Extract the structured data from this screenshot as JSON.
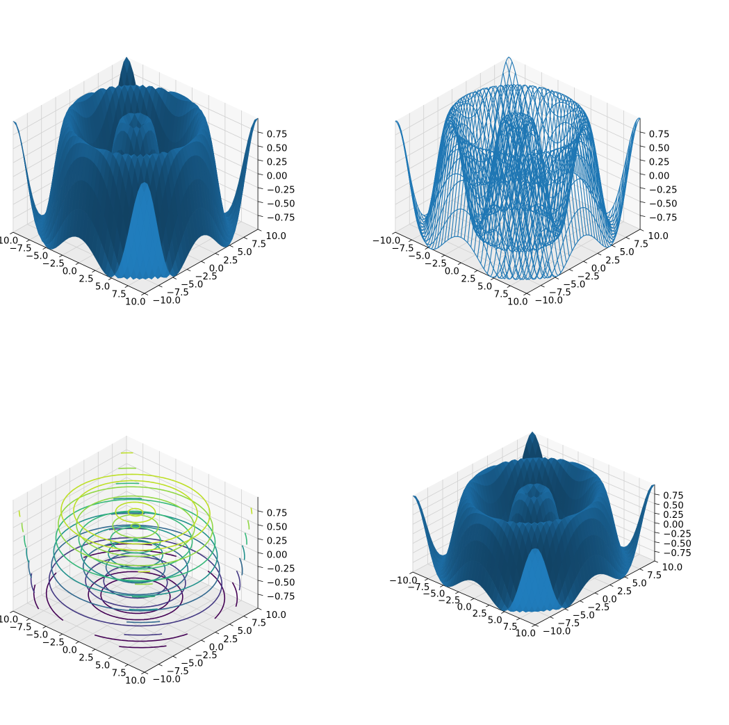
{
  "chart_data": [
    {
      "type": "surface",
      "render": "surface",
      "function": "sin(sqrt(x^2 + y^2))",
      "x_range": [
        -10,
        10
      ],
      "y_range": [
        -10,
        10
      ],
      "z_range": [
        -1,
        1
      ],
      "x_ticks": [
        "−10.0",
        "−7.5",
        "−5.0",
        "−2.5",
        "0.0",
        "2.5",
        "5.0",
        "7.5",
        "10.0"
      ],
      "y_ticks": [
        "−10.0",
        "−7.5",
        "−5.0",
        "−2.5",
        "0.0",
        "2.5",
        "5.0",
        "7.5",
        "10.0"
      ],
      "z_ticks": [
        "−0.75",
        "−0.50",
        "−0.25",
        "0.00",
        "0.25",
        "0.50",
        "0.75"
      ],
      "color": "#1f77b4",
      "grid": true,
      "view": {
        "elev": 30,
        "azim": -60
      }
    },
    {
      "type": "surface",
      "render": "wireframe",
      "function": "sin(sqrt(x^2 + y^2))",
      "x_range": [
        -10,
        10
      ],
      "y_range": [
        -10,
        10
      ],
      "z_range": [
        -1,
        1
      ],
      "x_ticks": [
        "−10.0",
        "−7.5",
        "−5.0",
        "−2.5",
        "0.0",
        "2.5",
        "5.0",
        "7.5",
        "10.0"
      ],
      "y_ticks": [
        "−10.0",
        "−7.5",
        "−5.0",
        "−2.5",
        "0.0",
        "2.5",
        "5.0",
        "7.5",
        "10.0"
      ],
      "z_ticks": [
        "−0.75",
        "−0.50",
        "−0.25",
        "0.00",
        "0.25",
        "0.50",
        "0.75"
      ],
      "color": "#1f77b4",
      "grid": true,
      "view": {
        "elev": 30,
        "azim": -60
      }
    },
    {
      "type": "contour3d",
      "render": "contour",
      "function": "sin(sqrt(x^2 + y^2))",
      "x_range": [
        -10,
        10
      ],
      "y_range": [
        -10,
        10
      ],
      "z_range": [
        -1,
        1
      ],
      "levels": [
        -0.75,
        -0.5,
        -0.25,
        0,
        0.25,
        0.5,
        0.75
      ],
      "level_colors": [
        "#440154",
        "#443983",
        "#31688e",
        "#21918c",
        "#35b779",
        "#90d743",
        "#bddf26"
      ],
      "x_ticks": [
        "−10.0",
        "−7.5",
        "−5.0",
        "−2.5",
        "0.0",
        "2.5",
        "5.0",
        "7.5",
        "10.0"
      ],
      "y_ticks": [
        "−10.0",
        "−7.5",
        "−5.0",
        "−2.5",
        "0.0",
        "2.5",
        "5.0",
        "7.5",
        "10.0"
      ],
      "z_ticks": [
        "−0.75",
        "−0.50",
        "−0.25",
        "0.00",
        "0.25",
        "0.50",
        "0.75"
      ],
      "grid": true,
      "view": {
        "elev": 30,
        "azim": -60
      }
    },
    {
      "type": "surface",
      "render": "surface",
      "function": "sin(sqrt(x^2 + y^2))",
      "x_range": [
        -10,
        10
      ],
      "y_range": [
        -10,
        10
      ],
      "z_range": [
        -1,
        1
      ],
      "x_ticks": [
        "−10.0",
        "−7.5",
        "−5.0",
        "−2.5",
        "0.0",
        "2.5",
        "5.0",
        "7.5",
        "10.0"
      ],
      "y_ticks": [
        "−10.0",
        "−7.5",
        "−5.0",
        "−2.5",
        "0.0",
        "2.5",
        "5.0",
        "7.5",
        "10.0"
      ],
      "z_ticks": [
        "−0.75",
        "−0.50",
        "−0.25",
        "0.00",
        "0.25",
        "0.50",
        "0.75"
      ],
      "color": "#1f77b4",
      "grid": true,
      "view": {
        "elev": 40,
        "azim": -60
      }
    }
  ]
}
